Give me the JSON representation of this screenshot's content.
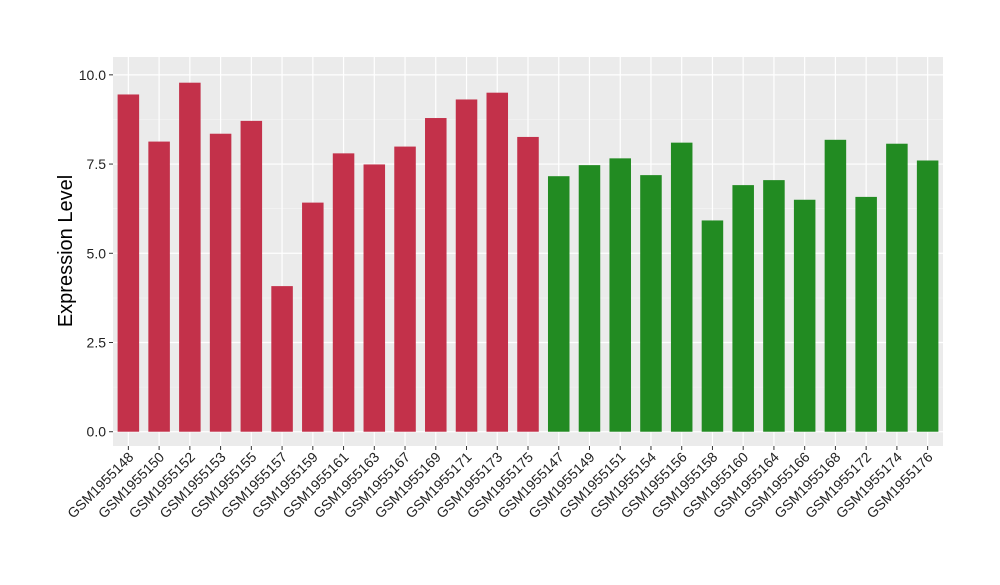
{
  "chart_data": {
    "type": "bar",
    "title": "",
    "xlabel": "",
    "ylabel": "Expression Level",
    "ylim": [
      -0.4,
      10.5
    ],
    "yticks": [
      "0.0",
      "2.5",
      "5.0",
      "7.5",
      "10.0"
    ],
    "ytick_values": [
      0,
      2.5,
      5,
      7.5,
      10
    ],
    "grid": true,
    "categories": [
      "GSM1955148",
      "GSM1955150",
      "GSM1955152",
      "GSM1955153",
      "GSM1955155",
      "GSM1955157",
      "GSM1955159",
      "GSM1955161",
      "GSM1955163",
      "GSM1955167",
      "GSM1955169",
      "GSM1955171",
      "GSM1955173",
      "GSM1955175",
      "GSM1955147",
      "GSM1955149",
      "GSM1955151",
      "GSM1955154",
      "GSM1955156",
      "GSM1955158",
      "GSM1955160",
      "GSM1955164",
      "GSM1955166",
      "GSM1955168",
      "GSM1955172",
      "GSM1955174",
      "GSM1955176"
    ],
    "values": [
      9.45,
      8.13,
      9.78,
      8.35,
      8.71,
      4.08,
      6.42,
      7.8,
      7.49,
      7.99,
      8.79,
      9.31,
      9.5,
      8.26,
      7.16,
      7.47,
      7.66,
      7.19,
      8.1,
      5.92,
      6.91,
      7.05,
      6.5,
      8.18,
      6.58,
      8.07,
      7.6
    ],
    "groups": [
      0,
      0,
      0,
      0,
      0,
      0,
      0,
      0,
      0,
      0,
      0,
      0,
      0,
      0,
      1,
      1,
      1,
      1,
      1,
      1,
      1,
      1,
      1,
      1,
      1,
      1,
      1
    ],
    "group_colors": [
      "#c3314a",
      "#228b22"
    ]
  }
}
